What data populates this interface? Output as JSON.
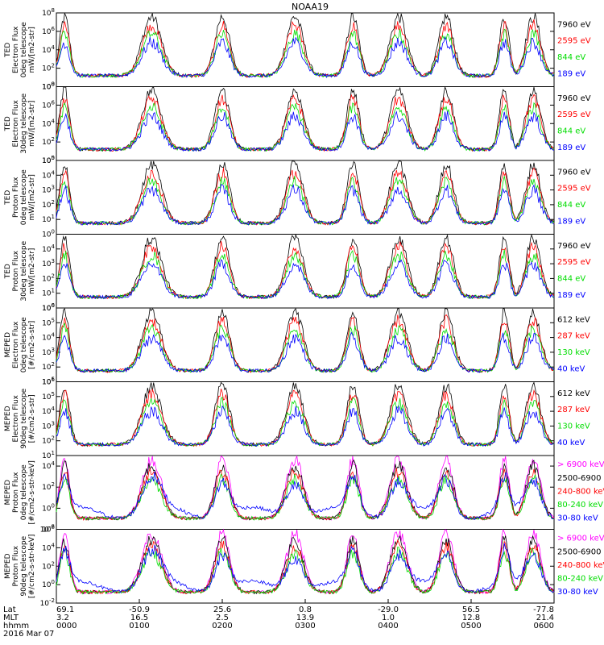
{
  "title": "NOAA19",
  "colors": {
    "black": "#000000",
    "red": "#ff0000",
    "green": "#00dd00",
    "blue": "#0000ff",
    "magenta": "#ff00ff"
  },
  "chart_data": {
    "type": "line",
    "x_axis": {
      "row_labels": [
        "Lat",
        "MLT",
        "hhmm",
        "2016 Mar 07"
      ],
      "times": [
        "0000",
        "0100",
        "0200",
        "0300",
        "0400",
        "0500",
        "0600"
      ],
      "lat": [
        "69.1",
        "-50.9",
        "25.6",
        "0.8",
        "-29.0",
        "56.5",
        "-77.8"
      ],
      "mlt": [
        "3.2",
        "16.5",
        "2.5",
        "13.9",
        "1.0",
        "12.8",
        "21.4"
      ],
      "range_hours": [
        0,
        6
      ]
    },
    "panels": [
      {
        "ylabel": [
          "TED",
          "Electron Flux",
          "0deg telescope",
          "mW/[m2-str]"
        ],
        "yscale": "log",
        "ylim_exp": [
          0,
          8
        ],
        "ytick_exps": [
          0,
          2,
          4,
          6,
          8
        ],
        "series": [
          {
            "name": "7960 eV",
            "color": "#000000"
          },
          {
            "name": "2595 eV",
            "color": "#ff0000"
          },
          {
            "name": "844 eV",
            "color": "#00dd00"
          },
          {
            "name": "189 eV",
            "color": "#0000ff"
          }
        ]
      },
      {
        "ylabel": [
          "TED",
          "Electron Flux",
          "30deg telescope",
          "mW/[m2-str]"
        ],
        "yscale": "log",
        "ylim_exp": [
          0,
          8
        ],
        "ytick_exps": [
          0,
          2,
          4,
          6,
          8
        ],
        "series": [
          {
            "name": "7960 eV",
            "color": "#000000"
          },
          {
            "name": "2595 eV",
            "color": "#ff0000"
          },
          {
            "name": "844 eV",
            "color": "#00dd00"
          },
          {
            "name": "189 eV",
            "color": "#0000ff"
          }
        ]
      },
      {
        "ylabel": [
          "TED",
          "Proton Flux",
          "0deg telescope",
          "mW/[m2-str]"
        ],
        "yscale": "log",
        "ylim_exp": [
          0,
          5
        ],
        "ytick_exps": [
          0,
          1,
          2,
          3,
          4,
          5
        ],
        "series": [
          {
            "name": "7960 eV",
            "color": "#000000"
          },
          {
            "name": "2595 eV",
            "color": "#ff0000"
          },
          {
            "name": "844 eV",
            "color": "#00dd00"
          },
          {
            "name": "189 eV",
            "color": "#0000ff"
          }
        ]
      },
      {
        "ylabel": [
          "TED",
          "Proton Flux",
          "30deg telescope",
          "mW/[m2-str]"
        ],
        "yscale": "log",
        "ylim_exp": [
          0,
          5
        ],
        "ytick_exps": [
          0,
          1,
          2,
          3,
          4
        ],
        "series": [
          {
            "name": "7960 eV",
            "color": "#000000"
          },
          {
            "name": "2595 eV",
            "color": "#ff0000"
          },
          {
            "name": "844 eV",
            "color": "#00dd00"
          },
          {
            "name": "189 eV",
            "color": "#0000ff"
          }
        ]
      },
      {
        "ylabel": [
          "MEPED",
          "Electron Flux",
          "0deg telescope",
          "[#/cm2-s-str]"
        ],
        "yscale": "log",
        "ylim_exp": [
          1,
          6
        ],
        "ytick_exps": [
          1,
          2,
          3,
          4,
          5,
          6
        ],
        "series": [
          {
            "name": "612 keV",
            "color": "#000000"
          },
          {
            "name": "287 keV",
            "color": "#ff0000"
          },
          {
            "name": "130 keV",
            "color": "#00dd00"
          },
          {
            "name": "40 keV",
            "color": "#0000ff"
          }
        ]
      },
      {
        "ylabel": [
          "MEPED",
          "Electron Flux",
          "90deg telescope",
          "[#/cm2-s-str]"
        ],
        "yscale": "log",
        "ylim_exp": [
          1,
          6
        ],
        "ytick_exps": [
          1,
          2,
          3,
          4,
          5,
          6
        ],
        "series": [
          {
            "name": "612 keV",
            "color": "#000000"
          },
          {
            "name": "287 keV",
            "color": "#ff0000"
          },
          {
            "name": "130 keV",
            "color": "#00dd00"
          },
          {
            "name": "40 keV",
            "color": "#0000ff"
          }
        ]
      },
      {
        "ylabel": [
          "MEPED",
          "Proton Flux",
          "0deg telescope",
          "[#/cm2-s-str-keV]"
        ],
        "yscale": "log",
        "ylim_exp": [
          -2,
          5
        ],
        "ytick_exps": [
          -2,
          0,
          2,
          4
        ],
        "series": [
          {
            "name": "> 6900 keV",
            "color": "#ff00ff"
          },
          {
            "name": "2500-6900",
            "color": "#000000"
          },
          {
            "name": "240-800 keV",
            "color": "#ff0000"
          },
          {
            "name": "80-240 keV",
            "color": "#00dd00"
          },
          {
            "name": "30-80 keV",
            "color": "#0000ff"
          }
        ]
      },
      {
        "ylabel": [
          "MEPED",
          "Proton Flux",
          "90deg telescope",
          "[#/cm2-s-str-keV]"
        ],
        "yscale": "log",
        "ylim_exp": [
          -2,
          6
        ],
        "ytick_exps": [
          -2,
          0,
          2,
          4,
          6
        ],
        "series": [
          {
            "name": "> 6900 keV",
            "color": "#ff00ff"
          },
          {
            "name": "2500-6900",
            "color": "#000000"
          },
          {
            "name": "240-800 keV",
            "color": "#ff0000"
          },
          {
            "name": "80-240 keV",
            "color": "#00dd00"
          },
          {
            "name": "30-80 keV",
            "color": "#0000ff"
          }
        ]
      }
    ]
  }
}
